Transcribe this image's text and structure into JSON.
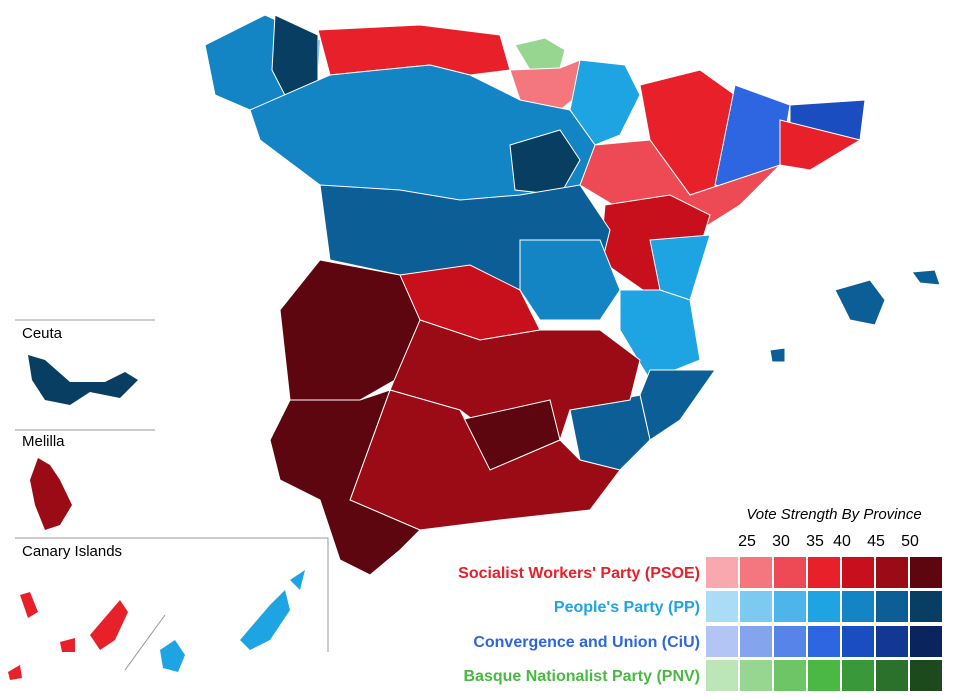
{
  "insets": [
    "Ceuta",
    "Melilla",
    "Canary Islands"
  ],
  "legend": {
    "title": "Vote Strength By Province",
    "levels": [
      25,
      30,
      35,
      40,
      45,
      50
    ],
    "parties": [
      {
        "name": "Socialist Workers' Party (PSOE)",
        "color": "#e8202a",
        "shades": [
          "#f9a8ae",
          "#f4777e",
          "#ee4a55",
          "#e8202a",
          "#c8101c",
          "#9b0b16",
          "#5e0610"
        ]
      },
      {
        "name": "People's Party (PP)",
        "color": "#1ea3e3",
        "shades": [
          "#aadcf5",
          "#7dcaf0",
          "#4db5ea",
          "#1ea3e3",
          "#1384c4",
          "#0c5f96",
          "#073e62"
        ]
      },
      {
        "name": "Convergence and Union (CiU)",
        "color": "#2d66e0",
        "shades": [
          "#b2c5f5",
          "#85a4ee",
          "#5784e8",
          "#2d66e0",
          "#1a4ec0",
          "#123893",
          "#0a245e"
        ]
      },
      {
        "name": "Basque Nationalist Party (PNV)",
        "color": "#4bb843",
        "shades": [
          "#bde6b8",
          "#97d690",
          "#6ec566",
          "#4bb843",
          "#39983a",
          "#2b712b",
          "#1c4a1c"
        ]
      }
    ]
  }
}
